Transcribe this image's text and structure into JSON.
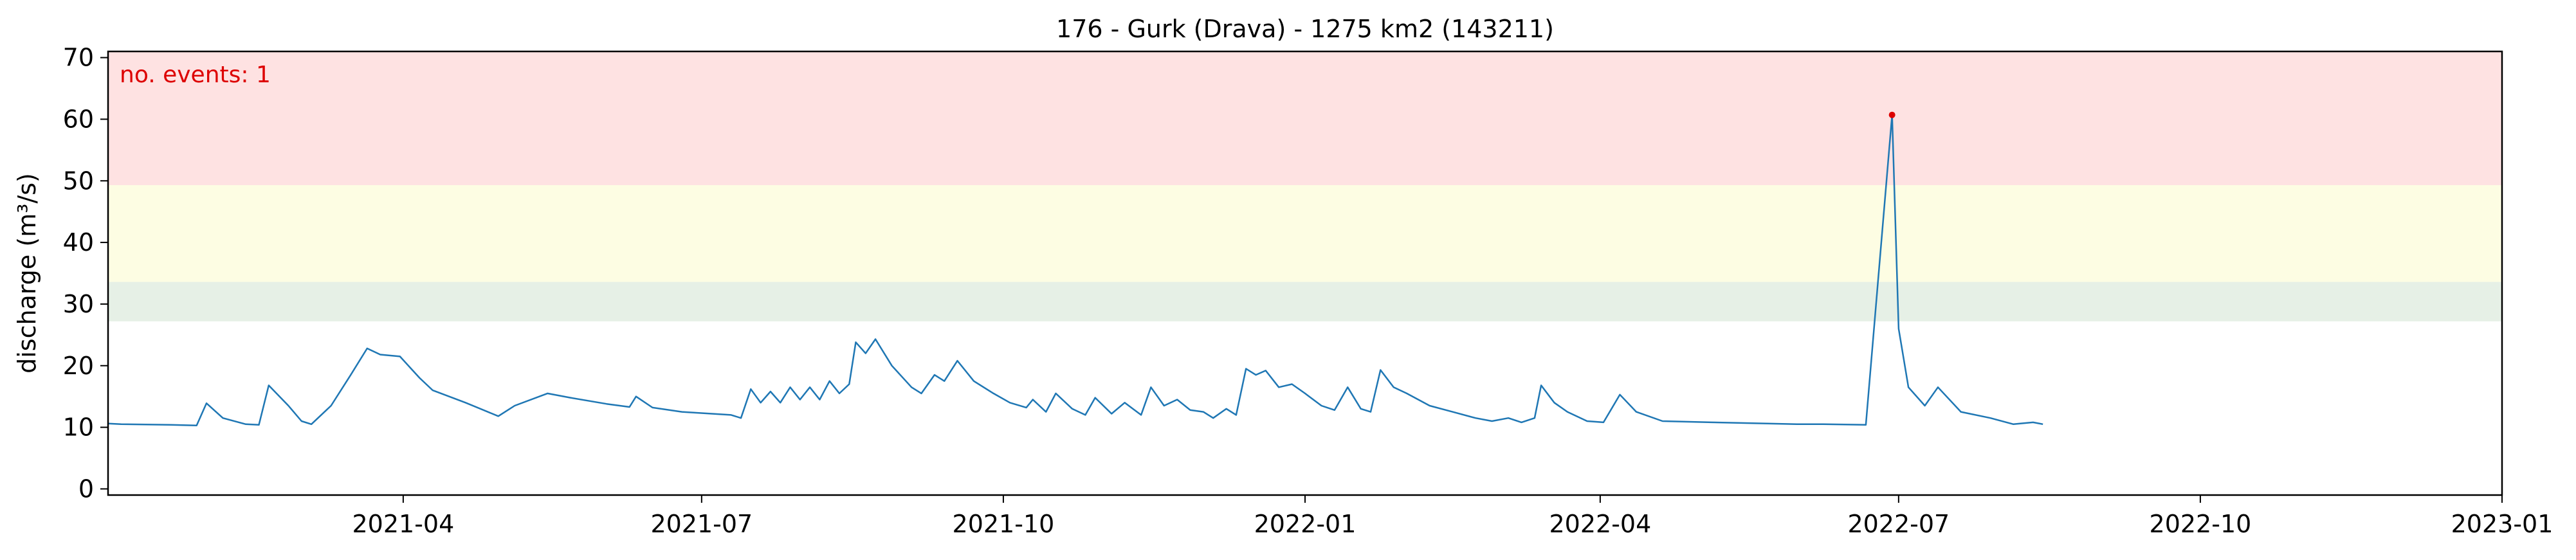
{
  "chart_data": {
    "type": "line",
    "title": "176 - Gurk (Drava) - 1275 km2 (143211)",
    "xlabel": "",
    "ylabel": "discharge (m³/s)",
    "x_range": [
      "2021-01-01",
      "2023-01-01"
    ],
    "ylim": [
      -1,
      71
    ],
    "x_ticks": [
      "2021-04",
      "2021-07",
      "2021-10",
      "2022-01",
      "2022-04",
      "2022-07",
      "2022-10",
      "2023-01"
    ],
    "y_ticks": [
      "0",
      "10",
      "20",
      "30",
      "40",
      "50",
      "60",
      "70"
    ],
    "grid": false,
    "bands": [
      {
        "name": "low",
        "from": 27.2,
        "to": 33.6,
        "color": "#e6f0e6"
      },
      {
        "name": "medium",
        "from": 33.6,
        "to": 49.3,
        "color": "#fdfde3"
      },
      {
        "name": "high",
        "from": 49.3,
        "to": 71,
        "color": "#fee2e2"
      }
    ],
    "annotation": {
      "text": "no. events: 1",
      "color": "#dd0000"
    },
    "event_points": [
      {
        "x": "2022-06-29",
        "y": 60.7,
        "color": "#dd0000"
      }
    ],
    "series": [
      {
        "color": "#1f77b4",
        "points": [
          [
            "2021-01-01",
            10.6
          ],
          [
            "2021-01-05",
            10.5
          ],
          [
            "2021-01-20",
            10.4
          ],
          [
            "2021-01-28",
            10.3
          ],
          [
            "2021-01-31",
            13.9
          ],
          [
            "2021-02-05",
            11.5
          ],
          [
            "2021-02-12",
            10.5
          ],
          [
            "2021-02-16",
            10.4
          ],
          [
            "2021-02-19",
            16.8
          ],
          [
            "2021-02-25",
            13.5
          ],
          [
            "2021-03-01",
            11.0
          ],
          [
            "2021-03-04",
            10.5
          ],
          [
            "2021-03-10",
            13.5
          ],
          [
            "2021-03-16",
            18.5
          ],
          [
            "2021-03-21",
            22.8
          ],
          [
            "2021-03-25",
            21.8
          ],
          [
            "2021-03-31",
            21.5
          ],
          [
            "2021-04-06",
            18.0
          ],
          [
            "2021-04-10",
            16.0
          ],
          [
            "2021-04-20",
            14.0
          ],
          [
            "2021-04-30",
            11.8
          ],
          [
            "2021-05-05",
            13.5
          ],
          [
            "2021-05-15",
            15.5
          ],
          [
            "2021-05-22",
            14.8
          ],
          [
            "2021-06-02",
            13.8
          ],
          [
            "2021-06-09",
            13.3
          ],
          [
            "2021-06-11",
            15.0
          ],
          [
            "2021-06-16",
            13.2
          ],
          [
            "2021-06-25",
            12.5
          ],
          [
            "2021-07-10",
            12.0
          ],
          [
            "2021-07-13",
            11.5
          ],
          [
            "2021-07-16",
            16.2
          ],
          [
            "2021-07-19",
            14.0
          ],
          [
            "2021-07-22",
            15.8
          ],
          [
            "2021-07-25",
            14.0
          ],
          [
            "2021-07-28",
            16.5
          ],
          [
            "2021-07-31",
            14.5
          ],
          [
            "2021-08-03",
            16.5
          ],
          [
            "2021-08-06",
            14.5
          ],
          [
            "2021-08-09",
            17.5
          ],
          [
            "2021-08-12",
            15.5
          ],
          [
            "2021-08-15",
            17.0
          ],
          [
            "2021-08-17",
            23.8
          ],
          [
            "2021-08-20",
            22.0
          ],
          [
            "2021-08-23",
            24.3
          ],
          [
            "2021-08-28",
            20.0
          ],
          [
            "2021-09-03",
            16.5
          ],
          [
            "2021-09-06",
            15.5
          ],
          [
            "2021-09-10",
            18.5
          ],
          [
            "2021-09-13",
            17.5
          ],
          [
            "2021-09-17",
            20.8
          ],
          [
            "2021-09-22",
            17.5
          ],
          [
            "2021-09-28",
            15.5
          ],
          [
            "2021-10-03",
            14.0
          ],
          [
            "2021-10-08",
            13.2
          ],
          [
            "2021-10-10",
            14.5
          ],
          [
            "2021-10-14",
            12.5
          ],
          [
            "2021-10-17",
            15.5
          ],
          [
            "2021-10-22",
            13.0
          ],
          [
            "2021-10-26",
            12.0
          ],
          [
            "2021-10-29",
            14.8
          ],
          [
            "2021-11-03",
            12.2
          ],
          [
            "2021-11-07",
            14.0
          ],
          [
            "2021-11-12",
            12.0
          ],
          [
            "2021-11-15",
            16.5
          ],
          [
            "2021-11-19",
            13.5
          ],
          [
            "2021-11-23",
            14.5
          ],
          [
            "2021-11-27",
            12.8
          ],
          [
            "2021-12-01",
            12.5
          ],
          [
            "2021-12-04",
            11.5
          ],
          [
            "2021-12-08",
            13.0
          ],
          [
            "2021-12-11",
            12.0
          ],
          [
            "2021-12-14",
            19.5
          ],
          [
            "2021-12-17",
            18.5
          ],
          [
            "2021-12-20",
            19.2
          ],
          [
            "2021-12-24",
            16.5
          ],
          [
            "2021-12-28",
            17.0
          ],
          [
            "2022-01-01",
            15.5
          ],
          [
            "2022-01-06",
            13.5
          ],
          [
            "2022-01-10",
            12.8
          ],
          [
            "2022-01-14",
            16.5
          ],
          [
            "2022-01-18",
            13.0
          ],
          [
            "2022-01-21",
            12.5
          ],
          [
            "2022-01-24",
            19.3
          ],
          [
            "2022-01-28",
            16.5
          ],
          [
            "2022-02-01",
            15.5
          ],
          [
            "2022-02-08",
            13.5
          ],
          [
            "2022-02-15",
            12.5
          ],
          [
            "2022-02-22",
            11.5
          ],
          [
            "2022-02-27",
            11.0
          ],
          [
            "2022-03-04",
            11.5
          ],
          [
            "2022-03-08",
            10.8
          ],
          [
            "2022-03-12",
            11.5
          ],
          [
            "2022-03-14",
            16.8
          ],
          [
            "2022-03-18",
            14.0
          ],
          [
            "2022-03-22",
            12.5
          ],
          [
            "2022-03-28",
            11.0
          ],
          [
            "2022-04-02",
            10.8
          ],
          [
            "2022-04-07",
            15.3
          ],
          [
            "2022-04-12",
            12.5
          ],
          [
            "2022-04-20",
            11.0
          ],
          [
            "2022-05-05",
            10.8
          ],
          [
            "2022-05-31",
            10.5
          ],
          [
            "2022-06-08",
            10.5
          ],
          [
            "2022-06-21",
            10.4
          ],
          [
            "2022-06-29",
            60.7
          ],
          [
            "2022-07-01",
            26.0
          ],
          [
            "2022-07-04",
            16.5
          ],
          [
            "2022-07-09",
            13.5
          ],
          [
            "2022-07-13",
            16.5
          ],
          [
            "2022-07-20",
            12.5
          ],
          [
            "2022-07-29",
            11.5
          ],
          [
            "2022-08-05",
            10.5
          ],
          [
            "2022-08-11",
            10.8
          ],
          [
            "2022-08-14",
            10.5
          ]
        ]
      }
    ]
  }
}
